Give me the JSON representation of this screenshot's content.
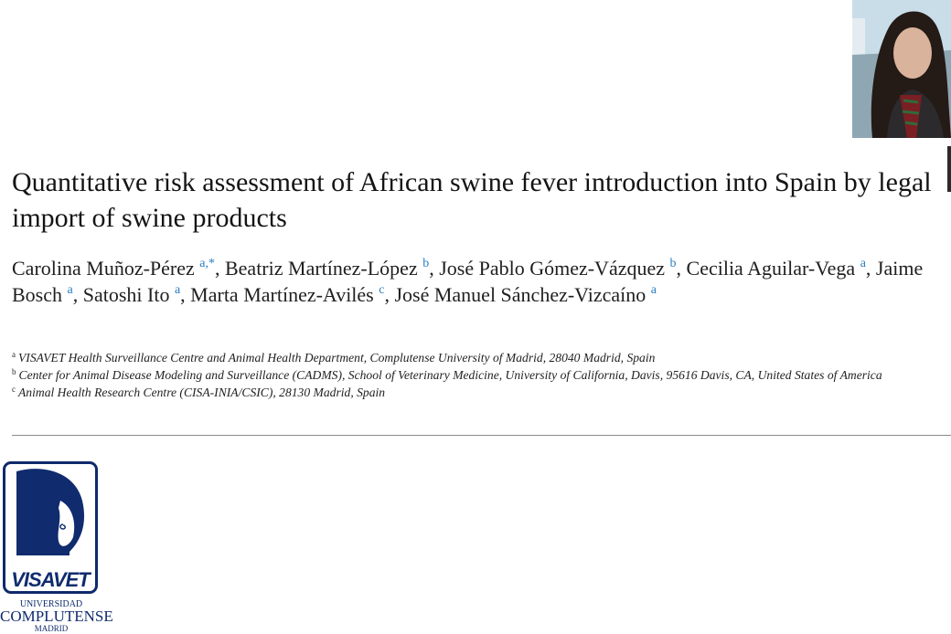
{
  "paper": {
    "title": "Quantitative risk assessment of African swine fever introduction into Spain by legal import of swine products",
    "authors": [
      {
        "name": "Carolina Muñoz-Pérez",
        "aff": "a,",
        "extra": "*",
        "sep": ", "
      },
      {
        "name": "Beatriz Martínez-López",
        "aff": "b",
        "sep": ", "
      },
      {
        "name": "José Pablo Gómez-Vázquez",
        "aff": "b",
        "sep": ", "
      },
      {
        "name": "Cecilia Aguilar-Vega",
        "aff": "a",
        "sep": ", "
      },
      {
        "name": "Jaime Bosch",
        "aff": "a",
        "sep": ", "
      },
      {
        "name": "Satoshi Ito",
        "aff": "a",
        "sep": ", "
      },
      {
        "name": "Marta Martínez-Avilés",
        "aff": "c",
        "sep": ", "
      },
      {
        "name": "José Manuel Sánchez-Vizcaíno",
        "aff": "a",
        "sep": ""
      }
    ],
    "affiliations": [
      {
        "mark": "a",
        "text": "VISAVET Health Surveillance Centre and Animal Health Department, Complutense University of Madrid, 28040 Madrid, Spain"
      },
      {
        "mark": "b",
        "text": "Center for Animal Disease Modeling and Surveillance (CADMS), School of Veterinary Medicine, University of California, Davis, 95616 Davis, CA, United States of America"
      },
      {
        "mark": "c",
        "text": "Animal Health Research Centre (CISA-INIA/CSIC), 28130 Madrid, Spain"
      }
    ]
  },
  "logo": {
    "wordmark": "VISAVET",
    "line1": "UNIVERSIDAD",
    "line2": "COMPLUTENSE",
    "line3": "MADRID",
    "color": "#102c6e"
  },
  "colors": {
    "affiliation_link": "#2a7fc0",
    "logo_blue": "#102c6e"
  }
}
